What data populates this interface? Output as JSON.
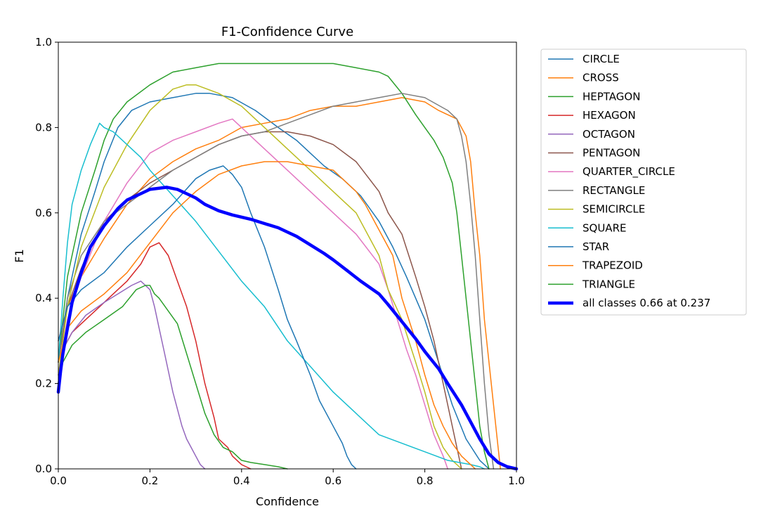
{
  "chart_data": {
    "type": "line",
    "title": "F1-Confidence Curve",
    "xlabel": "Confidence",
    "ylabel": "F1",
    "xlim": [
      0,
      1
    ],
    "ylim": [
      0,
      1
    ],
    "xticks": [
      0,
      0.2,
      0.4,
      0.6,
      0.8,
      1.0
    ],
    "xtick_labels": [
      "0.0",
      "0.2",
      "0.4",
      "0.6",
      "0.8",
      "1.0"
    ],
    "yticks": [
      0,
      0.2,
      0.4,
      0.6,
      0.8,
      1.0
    ],
    "ytick_labels": [
      "0.0",
      "0.2",
      "0.4",
      "0.6",
      "0.8",
      "1.0"
    ],
    "grid": false,
    "legend_position": "outside-right-top",
    "series": [
      {
        "name": "CIRCLE",
        "color": "#1f77b4",
        "bold": false,
        "x": [
          0,
          0.02,
          0.05,
          0.08,
          0.1,
          0.13,
          0.16,
          0.2,
          0.25,
          0.3,
          0.33,
          0.38,
          0.43,
          0.48,
          0.52,
          0.55,
          0.58,
          0.62,
          0.66,
          0.7,
          0.73,
          0.76,
          0.8,
          0.83,
          0.86,
          0.89,
          0.92,
          0.94
        ],
        "y": [
          0.2,
          0.4,
          0.55,
          0.65,
          0.72,
          0.8,
          0.84,
          0.86,
          0.87,
          0.88,
          0.88,
          0.87,
          0.84,
          0.8,
          0.77,
          0.74,
          0.71,
          0.68,
          0.64,
          0.58,
          0.52,
          0.45,
          0.35,
          0.25,
          0.15,
          0.07,
          0.02,
          0
        ]
      },
      {
        "name": "CROSS",
        "color": "#ff7f0e",
        "bold": false,
        "x": [
          0,
          0.02,
          0.05,
          0.1,
          0.15,
          0.2,
          0.25,
          0.3,
          0.35,
          0.4,
          0.45,
          0.5,
          0.55,
          0.6,
          0.65,
          0.7,
          0.75,
          0.8,
          0.83,
          0.85,
          0.87,
          0.89,
          0.9,
          0.91,
          0.92,
          0.93,
          0.95,
          0.96,
          0.965
        ],
        "y": [
          0.3,
          0.38,
          0.45,
          0.54,
          0.62,
          0.68,
          0.72,
          0.75,
          0.77,
          0.8,
          0.81,
          0.82,
          0.84,
          0.85,
          0.85,
          0.86,
          0.87,
          0.86,
          0.84,
          0.83,
          0.82,
          0.78,
          0.72,
          0.6,
          0.5,
          0.35,
          0.15,
          0.05,
          0
        ]
      },
      {
        "name": "HEPTAGON",
        "color": "#2ca02c",
        "bold": false,
        "x": [
          0,
          0.02,
          0.05,
          0.08,
          0.1,
          0.12,
          0.15,
          0.2,
          0.25,
          0.3,
          0.35,
          0.4,
          0.45,
          0.5,
          0.55,
          0.6,
          0.65,
          0.7,
          0.72,
          0.75,
          0.78,
          0.8,
          0.82,
          0.84,
          0.86,
          0.87,
          0.88,
          0.89,
          0.9,
          0.91,
          0.92,
          0.93,
          0.94
        ],
        "y": [
          0.25,
          0.45,
          0.6,
          0.7,
          0.77,
          0.82,
          0.86,
          0.9,
          0.93,
          0.94,
          0.95,
          0.95,
          0.95,
          0.95,
          0.95,
          0.95,
          0.94,
          0.93,
          0.92,
          0.88,
          0.83,
          0.8,
          0.77,
          0.73,
          0.67,
          0.6,
          0.5,
          0.4,
          0.3,
          0.2,
          0.1,
          0.04,
          0
        ]
      },
      {
        "name": "HEXAGON",
        "color": "#d62728",
        "bold": false,
        "x": [
          0,
          0.01,
          0.03,
          0.05,
          0.08,
          0.1,
          0.12,
          0.15,
          0.18,
          0.2,
          0.22,
          0.24,
          0.26,
          0.28,
          0.3,
          0.32,
          0.34,
          0.35,
          0.37,
          0.38,
          0.39,
          0.4,
          0.41,
          0.42
        ],
        "y": [
          0.2,
          0.28,
          0.32,
          0.34,
          0.37,
          0.39,
          0.41,
          0.44,
          0.48,
          0.52,
          0.53,
          0.5,
          0.44,
          0.38,
          0.3,
          0.2,
          0.12,
          0.07,
          0.05,
          0.03,
          0.02,
          0.01,
          0.005,
          0
        ]
      },
      {
        "name": "OCTAGON",
        "color": "#9467bd",
        "bold": false,
        "x": [
          0,
          0.01,
          0.03,
          0.06,
          0.1,
          0.13,
          0.16,
          0.18,
          0.2,
          0.21,
          0.22,
          0.23,
          0.24,
          0.25,
          0.26,
          0.27,
          0.28,
          0.29,
          0.3,
          0.31,
          0.32
        ],
        "y": [
          0.2,
          0.28,
          0.32,
          0.36,
          0.39,
          0.41,
          0.43,
          0.44,
          0.42,
          0.38,
          0.33,
          0.28,
          0.23,
          0.18,
          0.14,
          0.1,
          0.07,
          0.05,
          0.03,
          0.01,
          0
        ]
      },
      {
        "name": "PENTAGON",
        "color": "#8c564b",
        "bold": false,
        "x": [
          0,
          0.02,
          0.05,
          0.08,
          0.1,
          0.15,
          0.2,
          0.25,
          0.3,
          0.35,
          0.4,
          0.45,
          0.5,
          0.55,
          0.6,
          0.65,
          0.7,
          0.72,
          0.75,
          0.78,
          0.8,
          0.82,
          0.84,
          0.86,
          0.87,
          0.88
        ],
        "y": [
          0.25,
          0.38,
          0.47,
          0.54,
          0.58,
          0.63,
          0.67,
          0.7,
          0.73,
          0.76,
          0.78,
          0.79,
          0.79,
          0.78,
          0.76,
          0.72,
          0.65,
          0.6,
          0.55,
          0.45,
          0.38,
          0.3,
          0.2,
          0.1,
          0.05,
          0
        ]
      },
      {
        "name": "QUARTER_CIRCLE",
        "color": "#e377c2",
        "bold": false,
        "x": [
          0,
          0.02,
          0.05,
          0.08,
          0.1,
          0.15,
          0.2,
          0.25,
          0.3,
          0.35,
          0.38,
          0.4,
          0.45,
          0.5,
          0.55,
          0.6,
          0.65,
          0.7,
          0.72,
          0.74,
          0.76,
          0.78,
          0.8,
          0.82,
          0.84,
          0.85
        ],
        "y": [
          0.22,
          0.35,
          0.45,
          0.53,
          0.58,
          0.67,
          0.74,
          0.77,
          0.79,
          0.81,
          0.82,
          0.8,
          0.75,
          0.7,
          0.65,
          0.6,
          0.55,
          0.48,
          0.42,
          0.35,
          0.28,
          0.22,
          0.15,
          0.08,
          0.03,
          0
        ]
      },
      {
        "name": "RECTANGLE",
        "color": "#7f7f7f",
        "bold": false,
        "x": [
          0,
          0.02,
          0.05,
          0.1,
          0.15,
          0.2,
          0.25,
          0.3,
          0.35,
          0.4,
          0.45,
          0.5,
          0.55,
          0.6,
          0.65,
          0.7,
          0.75,
          0.8,
          0.85,
          0.87,
          0.88,
          0.89,
          0.9,
          0.91,
          0.92,
          0.93,
          0.94,
          0.95
        ],
        "y": [
          0.25,
          0.4,
          0.5,
          0.58,
          0.62,
          0.66,
          0.7,
          0.73,
          0.76,
          0.78,
          0.79,
          0.81,
          0.83,
          0.85,
          0.86,
          0.87,
          0.88,
          0.87,
          0.84,
          0.82,
          0.78,
          0.72,
          0.62,
          0.5,
          0.35,
          0.2,
          0.08,
          0
        ]
      },
      {
        "name": "SEMICIRCLE",
        "color": "#bcbd22",
        "bold": false,
        "x": [
          0,
          0.02,
          0.05,
          0.1,
          0.15,
          0.2,
          0.25,
          0.28,
          0.3,
          0.35,
          0.4,
          0.45,
          0.5,
          0.55,
          0.6,
          0.65,
          0.7,
          0.72,
          0.75,
          0.78,
          0.8,
          0.82,
          0.84,
          0.86,
          0.88
        ],
        "y": [
          0.22,
          0.38,
          0.52,
          0.66,
          0.76,
          0.84,
          0.89,
          0.9,
          0.9,
          0.88,
          0.85,
          0.8,
          0.75,
          0.7,
          0.65,
          0.6,
          0.5,
          0.42,
          0.35,
          0.25,
          0.18,
          0.1,
          0.05,
          0.02,
          0
        ]
      },
      {
        "name": "SQUARE",
        "color": "#17becf",
        "bold": false,
        "x": [
          0,
          0.01,
          0.02,
          0.03,
          0.05,
          0.07,
          0.09,
          0.1,
          0.12,
          0.15,
          0.18,
          0.2,
          0.25,
          0.3,
          0.35,
          0.4,
          0.45,
          0.5,
          0.55,
          0.6,
          0.65,
          0.7,
          0.75,
          0.8,
          0.85,
          0.9,
          0.92,
          0.93
        ],
        "y": [
          0.25,
          0.4,
          0.53,
          0.62,
          0.7,
          0.76,
          0.81,
          0.8,
          0.79,
          0.76,
          0.73,
          0.7,
          0.64,
          0.58,
          0.51,
          0.44,
          0.38,
          0.3,
          0.24,
          0.18,
          0.13,
          0.08,
          0.06,
          0.04,
          0.02,
          0.01,
          0.005,
          0
        ]
      },
      {
        "name": "STAR",
        "color": "#1f77b4",
        "bold": false,
        "x": [
          0,
          0.02,
          0.05,
          0.1,
          0.15,
          0.2,
          0.25,
          0.3,
          0.33,
          0.36,
          0.38,
          0.4,
          0.42,
          0.45,
          0.48,
          0.5,
          0.52,
          0.55,
          0.57,
          0.6,
          0.62,
          0.63,
          0.64,
          0.65
        ],
        "y": [
          0.3,
          0.38,
          0.42,
          0.46,
          0.52,
          0.57,
          0.62,
          0.68,
          0.7,
          0.71,
          0.69,
          0.66,
          0.6,
          0.52,
          0.42,
          0.35,
          0.3,
          0.22,
          0.16,
          0.1,
          0.06,
          0.03,
          0.01,
          0
        ]
      },
      {
        "name": "TRAPEZOID",
        "color": "#ff7f0e",
        "bold": false,
        "x": [
          0,
          0.02,
          0.05,
          0.1,
          0.15,
          0.2,
          0.25,
          0.3,
          0.35,
          0.4,
          0.45,
          0.5,
          0.55,
          0.6,
          0.62,
          0.65,
          0.67,
          0.7,
          0.73,
          0.75,
          0.78,
          0.8,
          0.82,
          0.84,
          0.86,
          0.88,
          0.9,
          0.91
        ],
        "y": [
          0.25,
          0.33,
          0.37,
          0.41,
          0.46,
          0.53,
          0.6,
          0.65,
          0.69,
          0.71,
          0.72,
          0.72,
          0.71,
          0.7,
          0.68,
          0.65,
          0.62,
          0.56,
          0.5,
          0.4,
          0.3,
          0.22,
          0.15,
          0.1,
          0.06,
          0.03,
          0.01,
          0
        ]
      },
      {
        "name": "TRIANGLE",
        "color": "#2ca02c",
        "bold": false,
        "x": [
          0,
          0.01,
          0.03,
          0.06,
          0.1,
          0.14,
          0.17,
          0.19,
          0.2,
          0.21,
          0.22,
          0.24,
          0.26,
          0.28,
          0.3,
          0.32,
          0.34,
          0.36,
          0.38,
          0.4,
          0.42,
          0.45,
          0.48,
          0.5
        ],
        "y": [
          0.2,
          0.25,
          0.29,
          0.32,
          0.35,
          0.38,
          0.42,
          0.43,
          0.43,
          0.41,
          0.4,
          0.37,
          0.34,
          0.27,
          0.2,
          0.13,
          0.08,
          0.05,
          0.04,
          0.02,
          0.015,
          0.01,
          0.005,
          0
        ]
      },
      {
        "name": "all classes 0.66 at 0.237",
        "color": "#0000ff",
        "bold": true,
        "x": [
          0,
          0.005,
          0.01,
          0.02,
          0.03,
          0.05,
          0.07,
          0.1,
          0.13,
          0.15,
          0.18,
          0.2,
          0.237,
          0.26,
          0.28,
          0.3,
          0.32,
          0.35,
          0.38,
          0.42,
          0.45,
          0.48,
          0.5,
          0.52,
          0.55,
          0.58,
          0.6,
          0.63,
          0.66,
          0.7,
          0.72,
          0.75,
          0.78,
          0.8,
          0.83,
          0.85,
          0.88,
          0.9,
          0.92,
          0.94,
          0.96,
          0.98,
          1.0
        ],
        "y": [
          0.18,
          0.23,
          0.27,
          0.33,
          0.39,
          0.46,
          0.52,
          0.57,
          0.61,
          0.63,
          0.645,
          0.655,
          0.66,
          0.655,
          0.645,
          0.635,
          0.62,
          0.605,
          0.595,
          0.585,
          0.575,
          0.565,
          0.555,
          0.545,
          0.525,
          0.505,
          0.49,
          0.465,
          0.44,
          0.41,
          0.385,
          0.345,
          0.305,
          0.275,
          0.235,
          0.2,
          0.15,
          0.11,
          0.07,
          0.035,
          0.015,
          0.005,
          0
        ]
      }
    ]
  }
}
